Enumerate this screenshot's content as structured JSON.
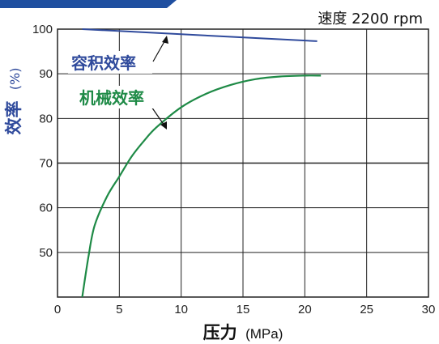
{
  "chart_data": {
    "type": "line",
    "speed_label": "速度 2200 rpm",
    "xlabel_main": "压力",
    "xlabel_unit": "(MPa)",
    "ylabel_main": "效率",
    "ylabel_unit": "(%)",
    "xlim": [
      0,
      30
    ],
    "ylim": [
      40,
      100
    ],
    "x_ticks": [
      0,
      5,
      10,
      15,
      20,
      25,
      30
    ],
    "y_ticks": [
      50,
      60,
      70,
      80,
      90,
      100
    ],
    "grid": true,
    "series": [
      {
        "name": "容积效率",
        "color": "#2f4a9c",
        "x": [
          2.0,
          21.0
        ],
        "y": [
          100.0,
          97.3
        ]
      },
      {
        "name": "机械效率",
        "color": "#1e8a46",
        "x": [
          2.0,
          2.5,
          3.0,
          4.0,
          5.0,
          6.0,
          7.0,
          8.0,
          10.0,
          12.0,
          14.0,
          16.0,
          18.0,
          20.0,
          21.3
        ],
        "y": [
          40.0,
          49.0,
          56.0,
          62.5,
          67.0,
          71.5,
          75.0,
          78.0,
          82.5,
          85.5,
          87.5,
          88.8,
          89.4,
          89.6,
          89.6
        ]
      }
    ],
    "annotations": [
      "容积效率",
      "机械效率"
    ]
  },
  "colors": {
    "banner": "#1f4fa0",
    "axis": "#222222",
    "ylabel": "#2f4a9c"
  }
}
